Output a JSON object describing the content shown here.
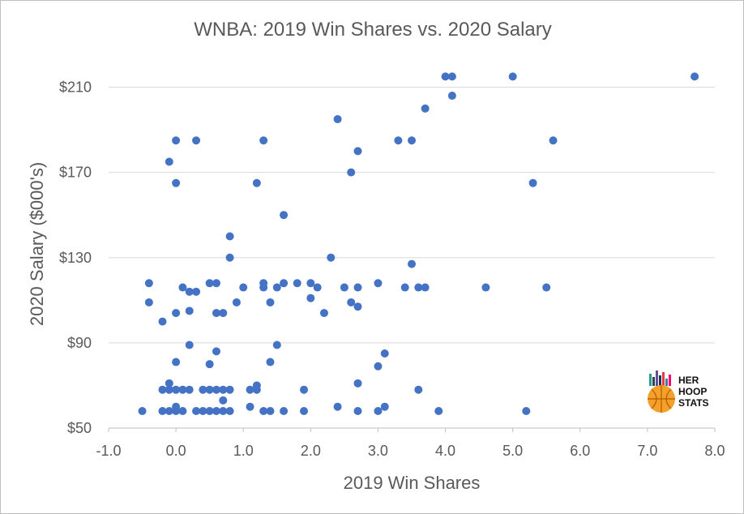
{
  "chart_data": {
    "type": "scatter",
    "title": "WNBA: 2019 Win Shares vs. 2020 Salary",
    "xlabel": "2019 Win Shares",
    "ylabel": "2020 Salary ($000's)",
    "xlim": [
      -1.0,
      8.0
    ],
    "ylim": [
      50,
      222
    ],
    "x_ticks": [
      -1.0,
      0.0,
      1.0,
      2.0,
      3.0,
      4.0,
      5.0,
      6.0,
      7.0,
      8.0
    ],
    "x_tick_labels": [
      "-1.0",
      "0.0",
      "1.0",
      "2.0",
      "3.0",
      "4.0",
      "5.0",
      "6.0",
      "7.0",
      "8.0"
    ],
    "y_ticks": [
      50,
      90,
      130,
      170,
      210
    ],
    "y_tick_labels": [
      "$50",
      "$90",
      "$130",
      "$170",
      "$210"
    ],
    "grid": "horizontal",
    "marker_color": "#4472c4",
    "series": [
      {
        "name": "",
        "points": [
          [
            -0.5,
            58
          ],
          [
            -0.2,
            58
          ],
          [
            -0.1,
            58
          ],
          [
            0.0,
            58
          ],
          [
            0.1,
            58
          ],
          [
            0.3,
            58
          ],
          [
            0.4,
            58
          ],
          [
            0.5,
            58
          ],
          [
            0.6,
            58
          ],
          [
            0.7,
            58
          ],
          [
            0.8,
            58
          ],
          [
            1.3,
            58
          ],
          [
            1.4,
            58
          ],
          [
            1.6,
            58
          ],
          [
            1.9,
            58
          ],
          [
            2.7,
            58
          ],
          [
            3.0,
            58
          ],
          [
            3.9,
            58
          ],
          [
            5.2,
            58
          ],
          [
            0.0,
            60
          ],
          [
            1.1,
            60
          ],
          [
            2.4,
            60
          ],
          [
            3.1,
            60
          ],
          [
            0.7,
            63
          ],
          [
            -0.2,
            68
          ],
          [
            -0.1,
            68
          ],
          [
            0.0,
            68
          ],
          [
            0.1,
            68
          ],
          [
            0.2,
            68
          ],
          [
            0.4,
            68
          ],
          [
            0.5,
            68
          ],
          [
            0.6,
            68
          ],
          [
            0.7,
            68
          ],
          [
            0.8,
            68
          ],
          [
            1.1,
            68
          ],
          [
            1.2,
            68
          ],
          [
            1.9,
            68
          ],
          [
            3.6,
            68
          ],
          [
            -0.1,
            71
          ],
          [
            1.2,
            70
          ],
          [
            2.7,
            71
          ],
          [
            0.0,
            81
          ],
          [
            0.5,
            80
          ],
          [
            1.4,
            81
          ],
          [
            3.0,
            79
          ],
          [
            3.1,
            85
          ],
          [
            0.6,
            86
          ],
          [
            0.2,
            89
          ],
          [
            1.5,
            89
          ],
          [
            -0.2,
            100
          ],
          [
            0.0,
            104
          ],
          [
            0.2,
            105
          ],
          [
            0.6,
            104
          ],
          [
            0.7,
            104
          ],
          [
            2.2,
            104
          ],
          [
            -0.4,
            109
          ],
          [
            0.9,
            109
          ],
          [
            1.4,
            109
          ],
          [
            2.6,
            109
          ],
          [
            2.7,
            107
          ],
          [
            2.0,
            111
          ],
          [
            -0.4,
            118
          ],
          [
            0.1,
            116
          ],
          [
            0.2,
            114
          ],
          [
            0.3,
            114
          ],
          [
            0.5,
            118
          ],
          [
            0.6,
            118
          ],
          [
            1.0,
            116
          ],
          [
            1.3,
            118
          ],
          [
            1.3,
            116
          ],
          [
            1.5,
            116
          ],
          [
            1.6,
            118
          ],
          [
            1.8,
            118
          ],
          [
            2.0,
            118
          ],
          [
            2.1,
            116
          ],
          [
            2.5,
            116
          ],
          [
            2.7,
            116
          ],
          [
            3.0,
            118
          ],
          [
            3.4,
            116
          ],
          [
            3.6,
            116
          ],
          [
            3.7,
            116
          ],
          [
            4.6,
            116
          ],
          [
            5.5,
            116
          ],
          [
            3.5,
            127
          ],
          [
            2.3,
            130
          ],
          [
            0.8,
            130
          ],
          [
            0.8,
            140
          ],
          [
            1.6,
            150
          ],
          [
            1.2,
            165
          ],
          [
            0.0,
            165
          ],
          [
            5.3,
            165
          ],
          [
            2.6,
            170
          ],
          [
            -0.1,
            175
          ],
          [
            2.7,
            180
          ],
          [
            0.0,
            185
          ],
          [
            0.3,
            185
          ],
          [
            1.3,
            185
          ],
          [
            3.3,
            185
          ],
          [
            3.5,
            185
          ],
          [
            5.6,
            185
          ],
          [
            2.4,
            195
          ],
          [
            3.7,
            200
          ],
          [
            4.1,
            206
          ],
          [
            4.0,
            215
          ],
          [
            4.1,
            215
          ],
          [
            5.0,
            215
          ],
          [
            7.7,
            215
          ]
        ]
      }
    ]
  },
  "logo": {
    "text_lines": [
      "HER",
      "HOOP",
      "STATS"
    ]
  }
}
